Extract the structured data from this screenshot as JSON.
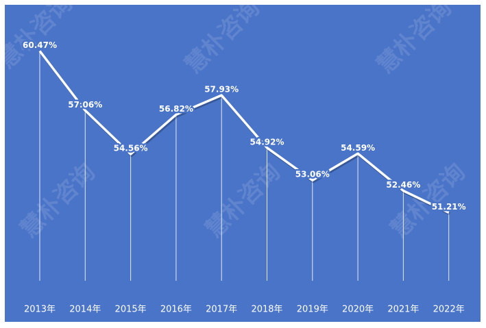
{
  "chart_data": {
    "type": "line",
    "categories": [
      "2013年",
      "2014年",
      "2015年",
      "2016年",
      "2017年",
      "2018年",
      "2019年",
      "2020年",
      "2021年",
      "2022年"
    ],
    "values": [
      60.47,
      57.06,
      54.56,
      56.82,
      57.93,
      54.92,
      53.06,
      54.59,
      52.46,
      51.21
    ],
    "value_labels": [
      "60.47%",
      "57.06%",
      "54.56%",
      "56.82%",
      "57.93%",
      "54.92%",
      "53.06%",
      "54.59%",
      "52.46%",
      "51.21%"
    ],
    "ylim": [
      47.3,
      63
    ],
    "color": "#ffffff",
    "background": "#4a74c8",
    "drop_lines": true,
    "watermark": "慧朴咨询"
  }
}
